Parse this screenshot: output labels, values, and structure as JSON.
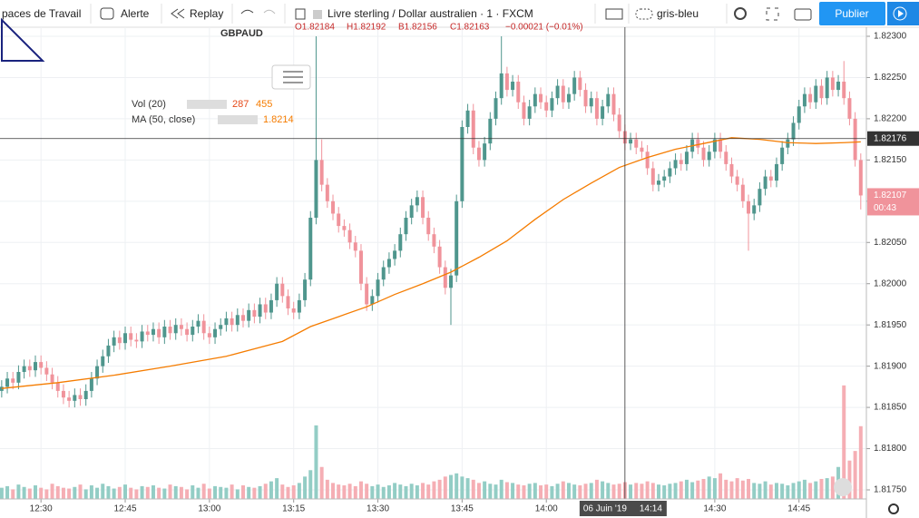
{
  "toolbar": {
    "workspaces": "paces de Travail",
    "alert": "Alerte",
    "replay": "Replay",
    "symbol": "Livre sterling / Dollar australien · 1 · FXCM",
    "theme": "gris-bleu",
    "publish": "Publier"
  },
  "chart_data": {
    "type": "candlestick",
    "title": "GBPAUD",
    "ohlc_labels": [
      "O1.82184",
      "H1.82192",
      "B1.82156",
      "C1.82163"
    ],
    "change": "−0.00021 (−0.01%)",
    "indicators": [
      {
        "name": "Vol (20)",
        "values": [
          "287",
          "455"
        ]
      },
      {
        "name": "MA (50, close)",
        "values": [
          "1.8214"
        ]
      }
    ],
    "up_color": "#4f968d",
    "down_color": "#f0939b",
    "volume_up_color": "#93cdc5",
    "volume_down_color": "#f5aeb4",
    "x": [
      743,
      744,
      745,
      746,
      747,
      748,
      749,
      750,
      751,
      752,
      753,
      754,
      755,
      756,
      757,
      758,
      759,
      760,
      761,
      762,
      763,
      764,
      765,
      766,
      767,
      768,
      769,
      770,
      771,
      772,
      773,
      774,
      775,
      776,
      777,
      778,
      779,
      780,
      781,
      782,
      783,
      784,
      785,
      786,
      787,
      788,
      789,
      790,
      791,
      792,
      793,
      794,
      795,
      796,
      797,
      798,
      799,
      800,
      801,
      802,
      803,
      804,
      805,
      806,
      807,
      808,
      809,
      810,
      811,
      812,
      813,
      814,
      815,
      816,
      817,
      818,
      819,
      820,
      821,
      822,
      823,
      824,
      825,
      826,
      827,
      828,
      829,
      830,
      831,
      832,
      833,
      834,
      835,
      836,
      837,
      838,
      839,
      840,
      841,
      842,
      843,
      844,
      845,
      846,
      847,
      848,
      849,
      850,
      851,
      852,
      853,
      854,
      855,
      856,
      857,
      858,
      859,
      860,
      861,
      862,
      863,
      864,
      865,
      866,
      867,
      868,
      869,
      870,
      871,
      872,
      873,
      874,
      875,
      876,
      877,
      878,
      879,
      880,
      881,
      882,
      883,
      884,
      885,
      886,
      887,
      888,
      889,
      890,
      891,
      892,
      893,
      894,
      895,
      896
    ],
    "open": [
      1.8187,
      1.81875,
      1.81885,
      1.8188,
      1.81893,
      1.819,
      1.81895,
      1.81905,
      1.81898,
      1.8189,
      1.8188,
      1.8187,
      1.81862,
      1.81858,
      1.81865,
      1.8186,
      1.8187,
      1.81885,
      1.819,
      1.81912,
      1.81925,
      1.81935,
      1.81928,
      1.8194,
      1.81932,
      1.8193,
      1.81942,
      1.81938,
      1.81945,
      1.81935,
      1.81948,
      1.8194,
      1.8195,
      1.81945,
      1.81938,
      1.81948,
      1.81955,
      1.8194,
      1.81935,
      1.81945,
      1.8195,
      1.81958,
      1.8195,
      1.81962,
      1.81955,
      1.81968,
      1.8196,
      1.81975,
      1.81965,
      1.8198,
      1.82,
      1.81985,
      1.8197,
      1.81965,
      1.8198,
      1.82005,
      1.8208,
      1.8215,
      1.8212,
      1.821,
      1.82085,
      1.8207,
      1.82065,
      1.8205,
      1.8204,
      1.82,
      1.81975,
      1.81985,
      1.82005,
      1.8202,
      1.8203,
      1.8204,
      1.8206,
      1.8208,
      1.82095,
      1.82105,
      1.8208,
      1.8206,
      1.82045,
      1.8202,
      1.81995,
      1.8201,
      1.821,
      1.8219,
      1.8221,
      1.82165,
      1.8215,
      1.8217,
      1.822,
      1.82225,
      1.82255,
      1.82235,
      1.82245,
      1.8222,
      1.822,
      1.82215,
      1.8223,
      1.8222,
      1.8221,
      1.82225,
      1.8224,
      1.8222,
      1.8223,
      1.8225,
      1.82235,
      1.82215,
      1.82225,
      1.822,
      1.82215,
      1.8223,
      1.82205,
      1.82185,
      1.8217,
      1.82175,
      1.82165,
      1.8216,
      1.8214,
      1.8212,
      1.82125,
      1.8213,
      1.8214,
      1.8215,
      1.82145,
      1.8216,
      1.82175,
      1.82165,
      1.8215,
      1.8216,
      1.82175,
      1.8216,
      1.82145,
      1.8213,
      1.8212,
      1.821,
      1.82085,
      1.82095,
      1.82115,
      1.8213,
      1.82125,
      1.82145,
      1.82165,
      1.82175,
      1.82195,
      1.82215,
      1.8223,
      1.8222,
      1.8224,
      1.82225,
      1.8225,
      1.82235,
      1.82245,
      1.82225,
      1.822,
      1.8215
    ],
    "high": [
      1.81883,
      1.81893,
      1.81893,
      1.81901,
      1.81908,
      1.81908,
      1.81913,
      1.81913,
      1.81906,
      1.81898,
      1.81888,
      1.81878,
      1.8187,
      1.81873,
      1.81873,
      1.81878,
      1.81893,
      1.81908,
      1.8192,
      1.81933,
      1.81943,
      1.81943,
      1.81948,
      1.81948,
      1.8194,
      1.8195,
      1.8195,
      1.81953,
      1.81953,
      1.81956,
      1.81956,
      1.81958,
      1.81958,
      1.81953,
      1.81956,
      1.81963,
      1.81963,
      1.81948,
      1.81953,
      1.81958,
      1.81966,
      1.81966,
      1.8197,
      1.8197,
      1.81976,
      1.81976,
      1.81983,
      1.81983,
      1.81988,
      1.82008,
      1.82008,
      1.81993,
      1.81978,
      1.81988,
      1.82013,
      1.82088,
      1.823,
      1.82175,
      1.82128,
      1.82108,
      1.82093,
      1.82078,
      1.82073,
      1.82058,
      1.82048,
      1.82008,
      1.81993,
      1.82013,
      1.82028,
      1.82038,
      1.82048,
      1.82068,
      1.82088,
      1.82103,
      1.82113,
      1.82113,
      1.82088,
      1.82068,
      1.82053,
      1.82028,
      1.82018,
      1.82108,
      1.82198,
      1.82218,
      1.82218,
      1.82173,
      1.82178,
      1.82208,
      1.82233,
      1.823,
      1.82263,
      1.82253,
      1.82253,
      1.82228,
      1.82223,
      1.82238,
      1.82238,
      1.82228,
      1.82233,
      1.82248,
      1.82248,
      1.82238,
      1.82258,
      1.82258,
      1.82243,
      1.82233,
      1.82233,
      1.82223,
      1.82238,
      1.82238,
      1.82213,
      1.82193,
      1.82183,
      1.82183,
      1.82173,
      1.82168,
      1.82148,
      1.82133,
      1.82138,
      1.82148,
      1.82158,
      1.82158,
      1.82168,
      1.82183,
      1.82183,
      1.82173,
      1.82168,
      1.82183,
      1.82183,
      1.82168,
      1.82153,
      1.82138,
      1.82128,
      1.82108,
      1.82103,
      1.82123,
      1.82138,
      1.82138,
      1.82153,
      1.82173,
      1.82183,
      1.82203,
      1.82223,
      1.82238,
      1.82238,
      1.82248,
      1.82248,
      1.82258,
      1.82258,
      1.82253,
      1.8227,
      1.82233,
      1.82208,
      1.82158
    ],
    "low": [
      1.81862,
      1.81867,
      1.81872,
      1.81872,
      1.81885,
      1.81887,
      1.81887,
      1.8189,
      1.81882,
      1.81872,
      1.81862,
      1.81854,
      1.8185,
      1.8185,
      1.81852,
      1.81852,
      1.81862,
      1.81877,
      1.81892,
      1.81904,
      1.81917,
      1.8192,
      1.8192,
      1.81924,
      1.81922,
      1.81922,
      1.8193,
      1.8193,
      1.81927,
      1.81927,
      1.81932,
      1.81932,
      1.81937,
      1.8193,
      1.8193,
      1.8194,
      1.81932,
      1.81927,
      1.81927,
      1.81937,
      1.81942,
      1.81942,
      1.81942,
      1.81947,
      1.81947,
      1.81952,
      1.81952,
      1.81957,
      1.81957,
      1.81972,
      1.81977,
      1.81962,
      1.81957,
      1.81957,
      1.81972,
      1.81997,
      1.82072,
      1.82112,
      1.82092,
      1.82077,
      1.82062,
      1.82057,
      1.82042,
      1.82032,
      1.81992,
      1.81967,
      1.81967,
      1.81977,
      1.81997,
      1.82012,
      1.82022,
      1.82032,
      1.82052,
      1.82072,
      1.82087,
      1.82072,
      1.82052,
      1.82037,
      1.82012,
      1.81987,
      1.8195,
      1.82002,
      1.82092,
      1.82182,
      1.82157,
      1.82142,
      1.82142,
      1.82162,
      1.82192,
      1.82217,
      1.82227,
      1.82227,
      1.82212,
      1.82192,
      1.82192,
      1.82207,
      1.82212,
      1.82202,
      1.82202,
      1.82217,
      1.82212,
      1.82212,
      1.82222,
      1.82227,
      1.82207,
      1.82207,
      1.82192,
      1.82192,
      1.82207,
      1.82197,
      1.82177,
      1.82162,
      1.82162,
      1.82157,
      1.82152,
      1.82132,
      1.82112,
      1.82112,
      1.82117,
      1.82122,
      1.82132,
      1.82137,
      1.82137,
      1.82152,
      1.82157,
      1.82142,
      1.82142,
      1.82152,
      1.82152,
      1.82137,
      1.82122,
      1.82112,
      1.82092,
      1.8204,
      1.82077,
      1.82087,
      1.82107,
      1.82117,
      1.82117,
      1.82137,
      1.82157,
      1.82167,
      1.82187,
      1.82207,
      1.82212,
      1.82212,
      1.82217,
      1.82217,
      1.82227,
      1.82227,
      1.82217,
      1.82192,
      1.82142,
      1.8209
    ],
    "close": [
      1.81875,
      1.81885,
      1.8188,
      1.81893,
      1.819,
      1.81895,
      1.81905,
      1.81898,
      1.8189,
      1.8188,
      1.8187,
      1.81862,
      1.81858,
      1.81865,
      1.8186,
      1.8187,
      1.81885,
      1.819,
      1.81912,
      1.81925,
      1.81935,
      1.81928,
      1.8194,
      1.81932,
      1.8193,
      1.81942,
      1.81938,
      1.81945,
      1.81935,
      1.81948,
      1.8194,
      1.8195,
      1.81945,
      1.81938,
      1.81948,
      1.81955,
      1.8194,
      1.81935,
      1.81945,
      1.8195,
      1.81958,
      1.8195,
      1.81962,
      1.81955,
      1.81968,
      1.8196,
      1.81975,
      1.81965,
      1.8198,
      1.82,
      1.81985,
      1.8197,
      1.81965,
      1.8198,
      1.82005,
      1.8208,
      1.8215,
      1.8212,
      1.821,
      1.82085,
      1.8207,
      1.82065,
      1.8205,
      1.8204,
      1.82,
      1.81975,
      1.81985,
      1.82005,
      1.8202,
      1.8203,
      1.8204,
      1.8206,
      1.8208,
      1.82095,
      1.82105,
      1.8208,
      1.8206,
      1.82045,
      1.8202,
      1.81995,
      1.8201,
      1.821,
      1.8219,
      1.8221,
      1.82165,
      1.8215,
      1.8217,
      1.822,
      1.82225,
      1.82255,
      1.82235,
      1.82245,
      1.8222,
      1.822,
      1.82215,
      1.8223,
      1.8222,
      1.8221,
      1.82225,
      1.8224,
      1.8222,
      1.8223,
      1.8225,
      1.82235,
      1.82215,
      1.82225,
      1.822,
      1.82215,
      1.8223,
      1.82205,
      1.82185,
      1.8217,
      1.82175,
      1.82165,
      1.8216,
      1.8214,
      1.8212,
      1.82125,
      1.8213,
      1.8214,
      1.8215,
      1.82145,
      1.8216,
      1.82175,
      1.82165,
      1.8215,
      1.8216,
      1.82175,
      1.8216,
      1.82145,
      1.8213,
      1.8212,
      1.821,
      1.82085,
      1.82095,
      1.82115,
      1.8213,
      1.82125,
      1.82145,
      1.82165,
      1.82175,
      1.82195,
      1.82215,
      1.8223,
      1.8222,
      1.8224,
      1.82225,
      1.8225,
      1.82235,
      1.82245,
      1.82225,
      1.822,
      1.8215,
      1.82107
    ],
    "volume": [
      70,
      80,
      60,
      90,
      75,
      65,
      85,
      70,
      60,
      95,
      80,
      70,
      65,
      75,
      90,
      60,
      85,
      70,
      95,
      80,
      65,
      75,
      90,
      70,
      60,
      80,
      75,
      85,
      70,
      65,
      90,
      80,
      75,
      60,
      85,
      70,
      95,
      65,
      80,
      75,
      70,
      90,
      60,
      85,
      75,
      70,
      80,
      95,
      110,
      130,
      90,
      75,
      85,
      100,
      140,
      180,
      460,
      200,
      120,
      100,
      90,
      85,
      95,
      80,
      110,
      95,
      80,
      90,
      75,
      85,
      100,
      90,
      80,
      95,
      85,
      100,
      90,
      110,
      120,
      140,
      150,
      160,
      140,
      130,
      120,
      100,
      110,
      95,
      90,
      120,
      105,
      100,
      90,
      85,
      95,
      100,
      85,
      90,
      80,
      95,
      110,
      100,
      90,
      85,
      95,
      100,
      120,
      110,
      100,
      90,
      95,
      105,
      90,
      100,
      95,
      110,
      100,
      90,
      85,
      95,
      100,
      110,
      120,
      105,
      115,
      125,
      140,
      130,
      160,
      120,
      110,
      130,
      115,
      125,
      100,
      95,
      110,
      90,
      100,
      95,
      85,
      100,
      110,
      120,
      100,
      110,
      125,
      130,
      140,
      200,
      710,
      240,
      300,
      455
    ],
    "volume_lim": [
      0,
      2950
    ],
    "ma": {
      "color": "#f57c00",
      "x": [
        743,
        753,
        763,
        773,
        783,
        793,
        798,
        803,
        808,
        813,
        818,
        823,
        828,
        833,
        838,
        843,
        848,
        853,
        858,
        863,
        868,
        873,
        878,
        883,
        888,
        893,
        896
      ],
      "values": [
        1.81873,
        1.8188,
        1.81889,
        1.819,
        1.81912,
        1.8193,
        1.81948,
        1.8196,
        1.81972,
        1.81987,
        1.82,
        1.82014,
        1.82032,
        1.82052,
        1.82078,
        1.82102,
        1.82122,
        1.82141,
        1.82153,
        1.82163,
        1.8217,
        1.82177,
        1.82175,
        1.82171,
        1.8217,
        1.82171,
        1.82172
      ]
    },
    "xlim": [
      742.7,
      897.0
    ],
    "ylim": [
      1.81739,
      1.82311
    ],
    "xticks": [
      {
        "value": 750,
        "label": "12:30"
      },
      {
        "value": 765,
        "label": "12:45"
      },
      {
        "value": 780,
        "label": "13:00"
      },
      {
        "value": 795,
        "label": "13:15"
      },
      {
        "value": 810,
        "label": "13:30"
      },
      {
        "value": 825,
        "label": "13:45"
      },
      {
        "value": 840,
        "label": "14:00"
      },
      {
        "value": 870,
        "label": "14:30"
      },
      {
        "value": 885,
        "label": "14:45"
      }
    ],
    "yticks": [
      {
        "value": 1.823,
        "label": "1.82300"
      },
      {
        "value": 1.8225,
        "label": "1.82250"
      },
      {
        "value": 1.822,
        "label": "1.82200"
      },
      {
        "value": 1.8215,
        "label": "1.82150"
      },
      {
        "value": 1.821,
        "label": "1.82100"
      },
      {
        "value": 1.8205,
        "label": "1.82050"
      },
      {
        "value": 1.82,
        "label": "1.82000"
      },
      {
        "value": 1.8195,
        "label": "1.81950"
      },
      {
        "value": 1.819,
        "label": "1.81900"
      },
      {
        "value": 1.8185,
        "label": "1.81850"
      },
      {
        "value": 1.818,
        "label": "1.81800"
      },
      {
        "value": 1.8175,
        "label": "1.81750"
      }
    ],
    "grid": true,
    "crosshair": {
      "x": 854,
      "date": "06 Juin '19",
      "time": "14:14",
      "price": {
        "value": 1.82176,
        "label": "1.82176"
      }
    },
    "last_price": {
      "value": 1.82107,
      "label": "1.82107"
    },
    "countdown": "00:43"
  }
}
